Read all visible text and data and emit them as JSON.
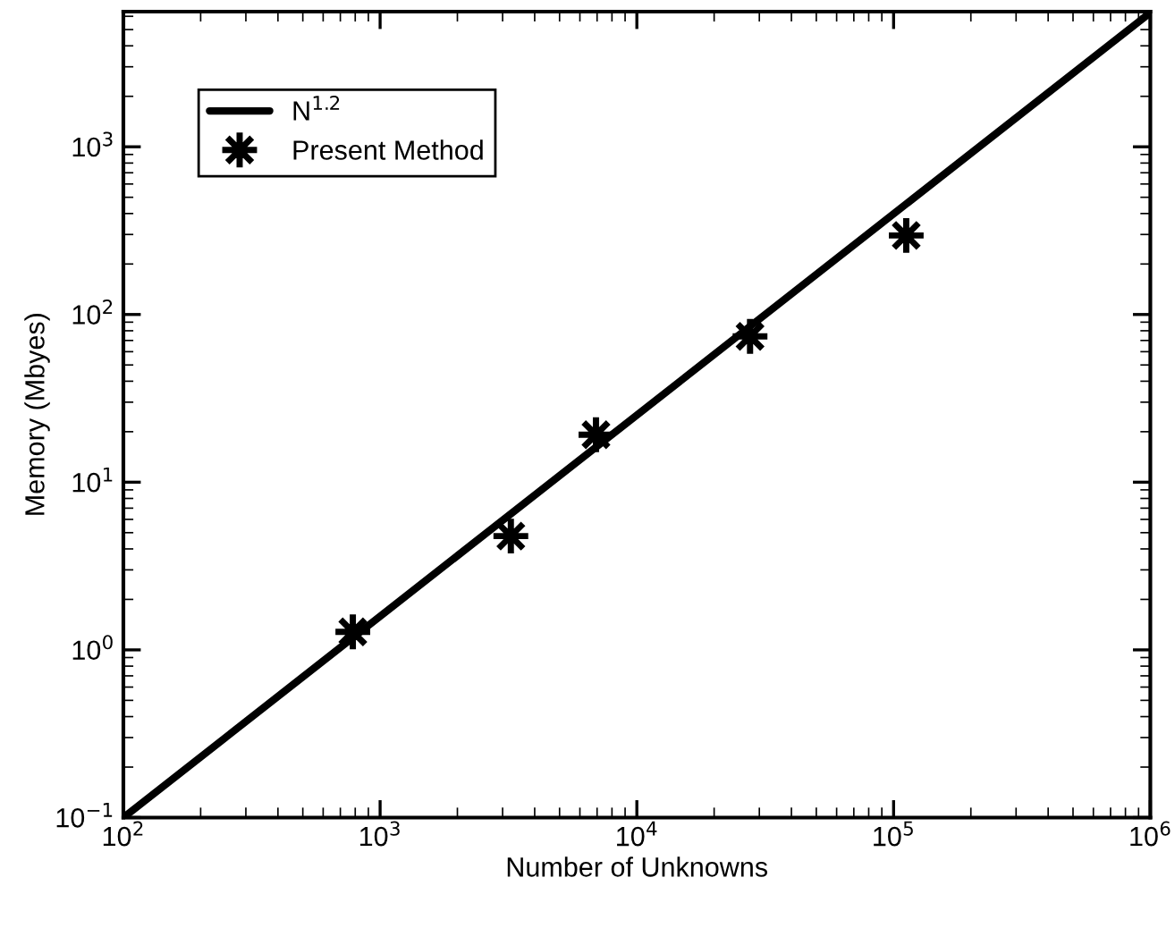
{
  "chart_data": {
    "type": "scatter",
    "xlabel": "Number of Unknowns",
    "ylabel": "Memory (Mbyes)",
    "log": "xy",
    "grid": false,
    "legend": "top left",
    "xlim": [
      100,
      1000000
    ],
    "ylim": [
      0.1,
      6400
    ],
    "xticks": [
      {
        "value": 100,
        "label": "10$^{2}$"
      },
      {
        "value": 1000,
        "label": "10$^{3}$"
      },
      {
        "value": 10000,
        "label": "10$^{4}$"
      },
      {
        "value": 100000,
        "label": "10$^{5}$"
      },
      {
        "value": 1000000,
        "label": "10$^{6}$"
      }
    ],
    "yticks": [
      {
        "value": 0.1,
        "label": "10$^{−1}$"
      },
      {
        "value": 1,
        "label": "10$^{0}$"
      },
      {
        "value": 10,
        "label": "10$^{1}$"
      },
      {
        "value": 100,
        "label": "10$^{2}$"
      },
      {
        "value": 1000,
        "label": "10$^{3}$"
      }
    ],
    "series": [
      {
        "name": "N$^{1.2}$",
        "type": "line",
        "color": "#000000",
        "marker": "none",
        "line_style": "solid",
        "x": [
          100,
          1000000
        ],
        "values": [
          0.1,
          6310
        ]
      },
      {
        "name": "Present Method",
        "color": "#000000",
        "marker": "star",
        "x": [
          783,
          3230,
          6930,
          27600,
          112000
        ],
        "values": [
          1.28,
          4.77,
          19.2,
          74,
          296
        ]
      }
    ]
  }
}
